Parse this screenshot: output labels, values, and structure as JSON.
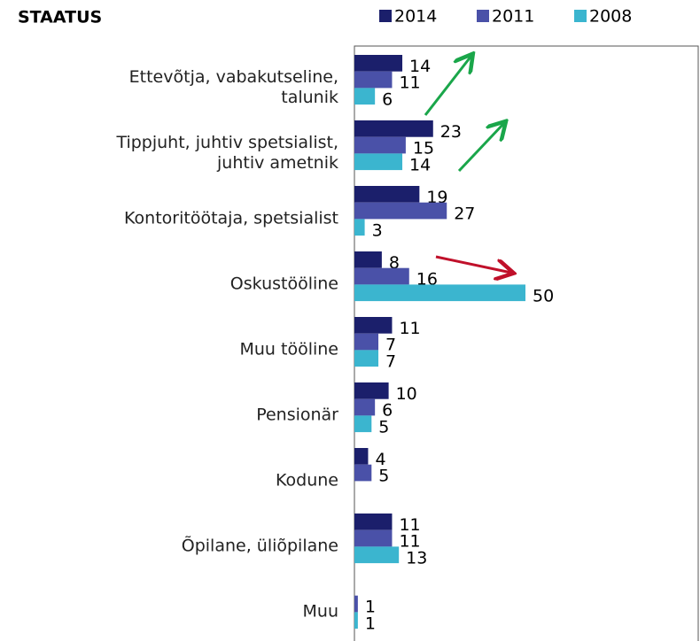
{
  "chart_data": {
    "type": "bar",
    "orientation": "horizontal",
    "title": "STAATUS",
    "categories": [
      "Ettevõtja, vabakutseline,\ntalunik",
      "Tippjuht, juhtiv spetsialist,\njuhtiv ametnik",
      "Kontoritöötaja, spetsialist",
      "Oskustööline",
      "Muu tööline",
      "Pensionär",
      "Kodune",
      "Õpilane, üliõpilane",
      "Muu"
    ],
    "series": [
      {
        "name": "2014",
        "color": "#1b1f6b",
        "values": [
          14,
          23,
          19,
          8,
          11,
          10,
          4,
          11,
          null
        ]
      },
      {
        "name": "2011",
        "color": "#4a51a8",
        "values": [
          11,
          15,
          27,
          16,
          7,
          6,
          5,
          11,
          1
        ]
      },
      {
        "name": "2008",
        "color": "#3bb5cf",
        "values": [
          6,
          14,
          3,
          50,
          7,
          5,
          null,
          13,
          1
        ]
      }
    ],
    "xlim": [
      0,
      100
    ],
    "legend": "top"
  }
}
